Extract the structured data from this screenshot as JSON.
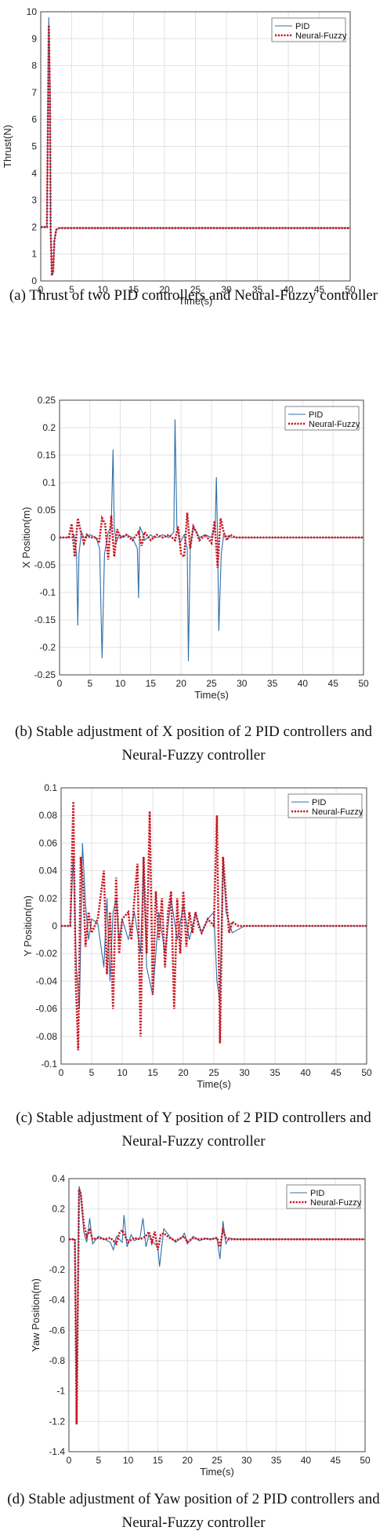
{
  "charts": [
    {
      "caption": "(a) Thrust of two PID controllers and Neural-Fuzzy controller",
      "chart_data": {
        "type": "line",
        "xlabel": "Time(s)",
        "ylabel": "Thrust(N)",
        "xlim": [
          0,
          50
        ],
        "ylim": [
          0,
          10
        ],
        "xticks": [
          0,
          5,
          10,
          15,
          20,
          25,
          30,
          35,
          40,
          45,
          50
        ],
        "xtick_labels": [
          "0",
          "5",
          "10",
          "15",
          "20",
          "25",
          "30",
          "35",
          "40",
          "45",
          "50"
        ],
        "yticks": [
          0,
          1,
          2,
          3,
          4,
          5,
          6,
          7,
          8,
          9,
          10
        ],
        "ytick_labels": [
          "0",
          "1",
          "2",
          "3",
          "4",
          "5",
          "6",
          "7",
          "8",
          "9",
          "10"
        ],
        "grid": true,
        "legend_position": "top-right",
        "series": [
          {
            "name": "PID",
            "color": "#2f6ea8",
            "style": "solid",
            "x": [
              0,
              0.8,
              1.0,
              1.3,
              1.5,
              1.6,
              1.8,
              2.0,
              2.2,
              2.5,
              3,
              5,
              50
            ],
            "y": [
              2,
              2,
              2,
              9.8,
              7,
              2,
              0.2,
              0.3,
              1.5,
              1.9,
              1.97,
              1.97,
              1.97
            ]
          },
          {
            "name": "Neural-Fuzzy",
            "color": "#c8141e",
            "style": "dotted",
            "x": [
              0,
              0.8,
              1.0,
              1.3,
              1.5,
              1.6,
              1.8,
              2.0,
              2.2,
              2.5,
              3,
              5,
              50
            ],
            "y": [
              2,
              2,
              2,
              9.5,
              6.5,
              2,
              0.2,
              0.35,
              1.5,
              1.9,
              1.96,
              1.96,
              1.96
            ]
          }
        ]
      }
    },
    {
      "caption": "(b) Stable adjustment of X position of 2 PID controllers and Neural-Fuzzy controller",
      "chart_data": {
        "type": "line",
        "xlabel": "Time(s)",
        "ylabel": "X Position(m)",
        "xlim": [
          0,
          50
        ],
        "ylim": [
          -0.25,
          0.25
        ],
        "xticks": [
          0,
          5,
          10,
          15,
          20,
          25,
          30,
          35,
          40,
          45,
          50
        ],
        "xtick_labels": [
          "0",
          "5",
          "10",
          "15",
          "20",
          "25",
          "30",
          "35",
          "40",
          "45",
          "50"
        ],
        "yticks": [
          -0.25,
          -0.2,
          -0.15,
          -0.1,
          -0.05,
          0,
          0.05,
          0.1,
          0.15,
          0.2,
          0.25
        ],
        "ytick_labels": [
          "-0.25",
          "-0.2",
          "-0.15",
          "-0.1",
          "-0.05",
          "0",
          "0.05",
          "0.1",
          "0.15",
          "0.2",
          "0.25"
        ],
        "grid": true,
        "legend_position": "top-right",
        "series": [
          {
            "name": "PID",
            "color": "#2f6ea8",
            "style": "solid",
            "x": [
              0,
              2,
              2.4,
              2.8,
              3,
              3.2,
              3.6,
              4,
              5,
              6,
              6.6,
              7,
              7.4,
              8,
              8.5,
              8.8,
              9,
              9.3,
              9.8,
              10.5,
              11,
              12,
              12.8,
              13,
              13.2,
              13.6,
              14,
              15,
              15.5,
              16,
              17,
              18,
              18.8,
              19,
              19.3,
              19.8,
              20.5,
              21,
              21.2,
              21.5,
              22,
              22.5,
              23,
              24,
              25,
              25.6,
              25.8,
              26,
              26.2,
              26.6,
              27,
              28,
              30,
              50
            ],
            "y": [
              0,
              0,
              0.005,
              -0.03,
              -0.16,
              -0.03,
              0.01,
              0,
              0.005,
              0,
              -0.02,
              -0.22,
              -0.03,
              0.01,
              0.02,
              0.16,
              0.02,
              -0.01,
              0.005,
              0,
              0.005,
              0,
              -0.02,
              -0.11,
              0.02,
              0.01,
              -0.005,
              0.005,
              0,
              0,
              0.005,
              0,
              0.01,
              0.215,
              0.02,
              -0.01,
              0.005,
              -0.02,
              -0.225,
              -0.02,
              0.02,
              0.01,
              0,
              0.005,
              0,
              0.02,
              0.11,
              -0.01,
              -0.17,
              -0.03,
              0.005,
              0,
              0,
              0
            ]
          },
          {
            "name": "Neural-Fuzzy",
            "color": "#c8141e",
            "style": "dotted",
            "x": [
              0,
              1.5,
              2,
              2.5,
              3,
              3.5,
              4,
              4.5,
              5,
              6,
              6.5,
              7,
              7.5,
              8,
              8.5,
              9,
              9.5,
              10,
              11,
              12,
              13,
              13.5,
              14,
              15,
              16,
              17,
              18,
              19,
              19.5,
              20,
              20.5,
              21,
              21.5,
              22,
              22.5,
              23,
              24,
              25,
              25.5,
              26,
              26.5,
              27,
              27.5,
              28,
              29,
              30,
              50
            ],
            "y": [
              0,
              0,
              0.025,
              -0.035,
              0.035,
              0.01,
              -0.01,
              0.005,
              0,
              0,
              -0.01,
              0.035,
              0.025,
              -0.04,
              0.04,
              -0.035,
              0.015,
              0,
              0.005,
              -0.005,
              0.01,
              -0.015,
              0.01,
              -0.005,
              0.005,
              0,
              0.005,
              -0.005,
              0.02,
              -0.03,
              -0.035,
              0.045,
              -0.02,
              0.02,
              0.01,
              -0.005,
              0.005,
              -0.01,
              0.03,
              -0.055,
              0.035,
              0.01,
              -0.005,
              0.005,
              0,
              0,
              0
            ]
          }
        ]
      }
    },
    {
      "caption": "(c) Stable adjustment of Y position of 2 PID controllers and Neural-Fuzzy controller",
      "chart_data": {
        "type": "line",
        "xlabel": "Time(s)",
        "ylabel": "Y Position(m)",
        "xlim": [
          0,
          50
        ],
        "ylim": [
          -0.1,
          0.1
        ],
        "xticks": [
          0,
          5,
          10,
          15,
          20,
          25,
          30,
          35,
          40,
          45,
          50
        ],
        "xtick_labels": [
          "0",
          "5",
          "10",
          "15",
          "20",
          "25",
          "30",
          "35",
          "40",
          "45",
          "50"
        ],
        "yticks": [
          -0.1,
          -0.08,
          -0.06,
          -0.04,
          -0.02,
          0,
          0.02,
          0.04,
          0.06,
          0.08,
          0.1
        ],
        "ytick_labels": [
          "-0.1",
          "-0.08",
          "-0.06",
          "-0.04",
          "-0.02",
          "0",
          "0.02",
          "0.04",
          "0.06",
          "0.08",
          "0.1"
        ],
        "grid": true,
        "legend_position": "top-right",
        "series": [
          {
            "name": "PID",
            "color": "#2f6ea8",
            "style": "solid",
            "x": [
              0,
              1.5,
              2,
              2.5,
              3,
              3.5,
              4,
              4.5,
              5,
              6,
              7,
              7.5,
              8,
              8.5,
              9,
              9.5,
              10,
              11,
              12,
              13,
              13.5,
              14,
              15,
              16,
              17,
              18,
              19,
              20,
              21,
              22,
              23,
              24,
              25,
              25.5,
              26,
              26.5,
              27,
              28,
              30,
              32,
              50
            ],
            "y": [
              0,
              0,
              0.05,
              -0.03,
              -0.06,
              0.06,
              0.015,
              -0.01,
              0.005,
              0.002,
              -0.03,
              0.02,
              -0.04,
              0.01,
              0.02,
              -0.01,
              0.005,
              -0.01,
              0.01,
              -0.02,
              0.05,
              -0.03,
              -0.05,
              0.01,
              -0.02,
              0.02,
              -0.01,
              0.015,
              -0.01,
              0.01,
              -0.005,
              0.005,
              0.01,
              -0.04,
              -0.055,
              0.05,
              0.01,
              -0.005,
              0,
              0,
              0
            ]
          },
          {
            "name": "Neural-Fuzzy",
            "color": "#c8141e",
            "style": "dotted",
            "x": [
              0,
              1.5,
              2,
              2.4,
              2.8,
              3.2,
              3.6,
              4,
              4.5,
              5,
              6,
              7,
              7.5,
              8,
              8.5,
              9,
              9.5,
              10,
              11,
              11.5,
              12,
              12.5,
              13,
              13.5,
              14,
              14.5,
              15,
              15.5,
              16,
              16.5,
              17,
              17.5,
              18,
              18.5,
              19,
              19.5,
              20,
              20.5,
              21,
              21.5,
              22,
              22.5,
              23,
              24,
              25,
              25.5,
              26,
              26.5,
              27,
              27.5,
              28,
              29,
              30,
              50
            ],
            "y": [
              0,
              0,
              0.09,
              -0.04,
              -0.09,
              0.05,
              0.03,
              -0.015,
              0.01,
              -0.005,
              0.005,
              0.04,
              -0.035,
              0.01,
              -0.06,
              0.035,
              -0.02,
              0.005,
              0.01,
              -0.01,
              0.02,
              0.045,
              -0.08,
              0.05,
              -0.02,
              0.083,
              -0.05,
              0.025,
              -0.01,
              0.02,
              -0.03,
              0.01,
              0.025,
              -0.06,
              0.02,
              -0.02,
              0.025,
              -0.015,
              0.01,
              -0.005,
              0.01,
              0,
              -0.005,
              0.005,
              0,
              0.08,
              -0.085,
              0.05,
              0.02,
              -0.005,
              0.003,
              0,
              0,
              0
            ]
          }
        ]
      }
    },
    {
      "caption": "(d) Stable adjustment of Yaw position of 2 PID controllers and Neural-Fuzzy controller",
      "chart_data": {
        "type": "line",
        "xlabel": "Time(s)",
        "ylabel": "Yaw Position(m)",
        "xlim": [
          0,
          50
        ],
        "ylim": [
          -1.4,
          0.4
        ],
        "xticks": [
          0,
          5,
          10,
          15,
          20,
          25,
          30,
          35,
          40,
          45,
          50
        ],
        "xtick_labels": [
          "0",
          "5",
          "10",
          "15",
          "20",
          "25",
          "30",
          "35",
          "40",
          "45",
          "50"
        ],
        "yticks": [
          -1.4,
          -1.2,
          -1,
          -0.8,
          -0.6,
          -0.4,
          -0.2,
          0,
          0.2,
          0.4
        ],
        "ytick_labels": [
          "-1.4",
          "-1.2",
          "-1",
          "-0.8",
          "-0.6",
          "-0.4",
          "-0.2",
          "0",
          "0.2",
          "0.4"
        ],
        "grid": true,
        "legend_position": "top-right",
        "series": [
          {
            "name": "PID",
            "color": "#2f6ea8",
            "style": "solid",
            "x": [
              0,
              1,
              1.3,
              1.7,
              2,
              2.5,
              3,
              3.5,
              4,
              5,
              6,
              7,
              7.5,
              8,
              9,
              9.3,
              9.8,
              10.5,
              11,
              12,
              12.5,
              13,
              13.5,
              14,
              15,
              15.3,
              16,
              17,
              18,
              19,
              19.5,
              20,
              21,
              22,
              23,
              24,
              25,
              25.5,
              26,
              26.5,
              27,
              28,
              30,
              50
            ],
            "y": [
              0,
              0,
              -1.2,
              0.35,
              0.3,
              0.05,
              -0.02,
              0.14,
              -0.03,
              0.02,
              0,
              -0.02,
              -0.07,
              0.02,
              -0.02,
              0.16,
              -0.05,
              0.03,
              -0.01,
              0.01,
              0.14,
              -0.05,
              0.03,
              -0.01,
              -0.05,
              -0.18,
              0.07,
              0.02,
              -0.02,
              0.01,
              0.04,
              -0.03,
              0.02,
              -0.01,
              0.005,
              0,
              0.01,
              -0.13,
              0.12,
              -0.03,
              0.01,
              0,
              0,
              0
            ]
          },
          {
            "name": "Neural-Fuzzy",
            "color": "#c8141e",
            "style": "dotted",
            "x": [
              0,
              1,
              1.3,
              1.7,
              2,
              2.5,
              3,
              3.5,
              4,
              5,
              6,
              7,
              8,
              8.5,
              9,
              9.5,
              10,
              11,
              12,
              13,
              13.5,
              14,
              14.5,
              15,
              15.5,
              16,
              17,
              18,
              19,
              19.5,
              20,
              21,
              22,
              23,
              24,
              25,
              25.5,
              26,
              26.5,
              27,
              28,
              30,
              50
            ],
            "y": [
              0,
              0,
              -1.22,
              0.33,
              0.3,
              0.1,
              0.02,
              0.06,
              0,
              0.01,
              0,
              0.01,
              -0.03,
              0.04,
              0.06,
              0.02,
              -0.02,
              0.01,
              0,
              0.02,
              0.05,
              -0.02,
              0.05,
              -0.07,
              0.03,
              0.04,
              0.01,
              -0.01,
              0.01,
              0.02,
              -0.02,
              0.01,
              0,
              0.005,
              0,
              0.01,
              -0.05,
              0.06,
              0.01,
              0,
              0,
              0,
              0
            ]
          }
        ]
      }
    }
  ]
}
